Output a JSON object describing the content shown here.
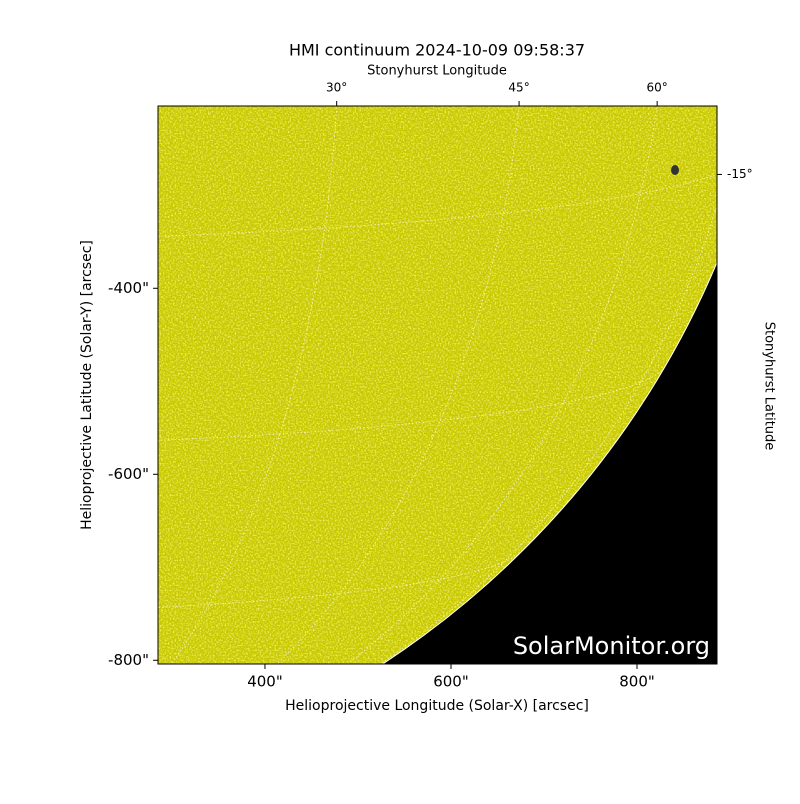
{
  "chart_data": {
    "type": "image",
    "title": "HMI continuum 2024-10-09 09:58:37",
    "xlabel": "Helioprojective Longitude (Solar-X) [arcsec]",
    "ylabel": "Helioprojective Latitude (Solar-Y) [arcsec]",
    "top_label": "Stonyhurst Longitude",
    "right_label": "Stonyhurst Latitude",
    "watermark": "SolarMonitor.org",
    "xlim": [
      285,
      886
    ],
    "ylim": [
      -804,
      -204
    ],
    "xticks": [
      {
        "value": 400,
        "label": "400\""
      },
      {
        "value": 600,
        "label": "600\""
      },
      {
        "value": 800,
        "label": "800\""
      }
    ],
    "yticks": [
      {
        "value": -400,
        "label": "-400\""
      },
      {
        "value": -600,
        "label": "-600\""
      },
      {
        "value": -800,
        "label": "-800\""
      }
    ],
    "lon_ticks": [
      {
        "value": 30,
        "label": "30°"
      },
      {
        "value": 45,
        "label": "45°"
      },
      {
        "value": 60,
        "label": "60°"
      }
    ],
    "lat_ticks": [
      {
        "value": -15,
        "label": "-15°"
      }
    ],
    "disk_color": "#c8c800",
    "background_color": "#000000"
  }
}
